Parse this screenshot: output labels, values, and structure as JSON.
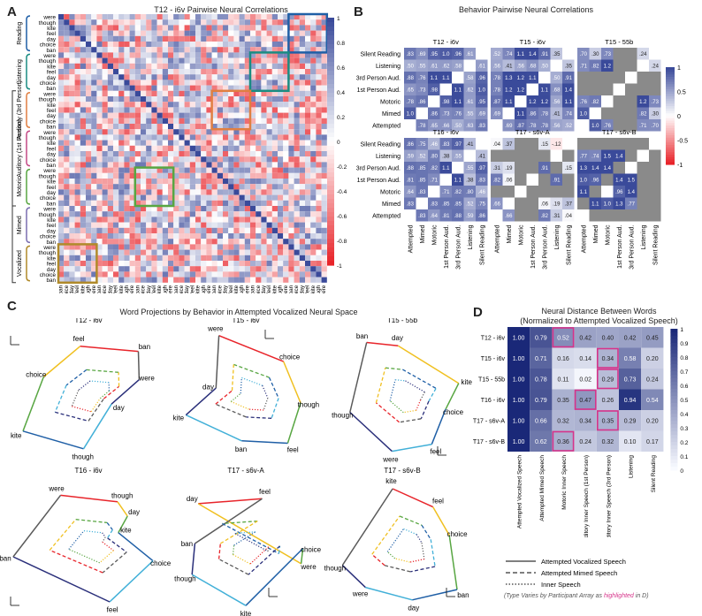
{
  "panels": {
    "a": {
      "label": "A",
      "title": "T12 - i6v Pairwise Neural Correlations"
    },
    "b": {
      "label": "B",
      "title": "Behavior Pairwise Neural Correlations"
    },
    "c": {
      "label": "C",
      "title": "Word Projections by Behavior in Attempted Vocalized Neural Space"
    },
    "d": {
      "label": "D",
      "title_line1": "Neural Distance Between Words",
      "title_line2": "(Normalized to Attempted Vocalized Speech)"
    }
  },
  "words": [
    "were",
    "though",
    "kite",
    "feel",
    "day",
    "choice",
    "ban"
  ],
  "panel_a": {
    "groups": [
      "Reading",
      "Listening",
      "Auditory (3rd Person)",
      "Auditory (1st Person)",
      "Motoric",
      "Mimed",
      "Vocalized"
    ],
    "outer_groups": [
      "Inner Speech (IS)",
      "Attempted Speech (AS)"
    ],
    "axis_label": "(IS)",
    "colorbar_ticks": [
      "1",
      "0.8",
      "0.6",
      "0.4",
      "0.2",
      "0",
      "-0.2",
      "-0.4",
      "-0.6",
      "-0.8",
      "-1"
    ]
  },
  "panel_b": {
    "row_labels": [
      "Silent Reading",
      "Listening",
      "3rd Person Aud.",
      "1st Person Aud.",
      "Motoric",
      "Mimed",
      "Attempted"
    ],
    "col_labels": [
      "Attempted",
      "Mimed",
      "Motoric",
      "1st Person Aud.",
      "3rd Person Aud.",
      "Listening",
      "Silent Reading"
    ],
    "bracket_as": "(AS)",
    "bracket_is": "(IS)",
    "colorbar_ticks": [
      "1",
      "0.5",
      "0",
      "-0.5",
      "-1"
    ],
    "matrices": [
      {
        "name": "T12 - i6v",
        "cells": [
          [
            ".83",
            ".69",
            ".95",
            "1.0",
            ".96",
            ".61",
            ""
          ],
          [
            ".50",
            ".55",
            ".61",
            ".62",
            ".58",
            "",
            ".61"
          ],
          [
            ".88",
            ".76",
            "1.1",
            "1.1",
            "",
            ".58",
            ".96"
          ],
          [
            ".65",
            ".73",
            ".98",
            "",
            "1.1",
            ".62",
            "1.0"
          ],
          [
            ".78",
            ".86",
            "",
            ".98",
            "1.1",
            ".61",
            ".95"
          ],
          [
            "1.0",
            "",
            ".86",
            ".73",
            ".76",
            ".55",
            ".69"
          ],
          [
            "",
            ".78",
            ".65",
            ".66",
            ".50",
            ".63",
            ".83"
          ]
        ]
      },
      {
        "name": "T15 - i6v",
        "cells": [
          [
            ".52",
            ".74",
            "1.1",
            "1.4",
            ".91",
            ".35",
            ""
          ],
          [
            ".56",
            ".41",
            ".56",
            ".68",
            ".50",
            "",
            ".35"
          ],
          [
            ".78",
            "1.3",
            "1.2",
            "1.1",
            "",
            ".50",
            ".91"
          ],
          [
            ".78",
            "1.2",
            "1.2",
            "",
            "1.1",
            ".68",
            "1.4"
          ],
          [
            ".87",
            "1.1",
            "",
            "1.2",
            "1.2",
            ".56",
            "1.1"
          ],
          [
            ".69",
            "",
            "1.1",
            ".86",
            ".78",
            ".41",
            ".74"
          ],
          [
            "",
            ".69",
            ".87",
            ".78",
            ".78",
            ".56",
            ".52"
          ]
        ]
      },
      {
        "name": "T15 - 55b",
        "cells": [
          [
            ".70",
            ".30",
            ".73",
            "",
            "",
            ".24",
            ""
          ],
          [
            ".71",
            ".82",
            "1.2",
            "",
            "",
            "",
            ".24"
          ],
          [
            "",
            "",
            "",
            "",
            "",
            "",
            ""
          ],
          [
            "",
            "",
            "",
            "",
            "",
            "",
            ""
          ],
          [
            ".76",
            ".82",
            "",
            "",
            "",
            "1.2",
            ".73"
          ],
          [
            "1.0",
            "",
            "",
            "",
            "",
            ".82",
            ".30"
          ],
          [
            "",
            "1.0",
            ".76",
            "",
            "",
            ".71",
            ".70"
          ]
        ]
      },
      {
        "name": "T16 - i6v",
        "cells": [
          [
            ".86",
            ".75",
            ".46",
            ".83",
            ".97",
            ".41",
            ""
          ],
          [
            ".59",
            ".52",
            ".80",
            ".38",
            ".55",
            "",
            ".41"
          ],
          [
            ".88",
            ".85",
            ".82",
            "1.1",
            "",
            ".55",
            ".97"
          ],
          [
            ".81",
            ".85",
            ".71",
            "",
            "1.1",
            ".38",
            ".83"
          ],
          [
            ".64",
            ".83",
            "",
            ".71",
            ".82",
            ".80",
            ".46"
          ],
          [
            ".83",
            "",
            ".83",
            ".85",
            ".85",
            ".52",
            ".75"
          ],
          [
            "",
            ".83",
            ".64",
            ".81",
            ".88",
            ".59",
            ".86"
          ]
        ]
      },
      {
        "name": "T17 - s6v-A",
        "cells": [
          [
            ".04",
            ".37",
            "",
            "",
            ".15",
            "-.12",
            ""
          ],
          [
            "",
            "",
            "",
            "",
            "",
            "",
            ""
          ],
          [
            ".31",
            ".19",
            "",
            "",
            ".91",
            "",
            ".15"
          ],
          [
            ".82",
            ".06",
            "",
            "",
            "",
            ".91",
            ""
          ],
          [
            "",
            "",
            "",
            "",
            "",
            "",
            ""
          ],
          [
            ".66",
            "",
            "",
            "",
            ".06",
            ".19",
            ".37"
          ],
          [
            "",
            ".66",
            "",
            "",
            ".82",
            ".31",
            ".04"
          ]
        ]
      },
      {
        "name": "T17 - s6v-B",
        "cells": [
          [
            "",
            "",
            "",
            "",
            "",
            "",
            ""
          ],
          [
            ".77",
            ".74",
            "1.5",
            "1.4",
            "",
            "",
            ""
          ],
          [
            "1.3",
            "1.4",
            "1.4",
            "",
            "",
            "",
            ""
          ],
          [
            "1.0",
            ".96",
            "",
            "1.4",
            "1.5",
            "",
            ""
          ],
          [
            "1.1",
            "",
            "",
            ".96",
            "1.4",
            "",
            ""
          ],
          [
            "",
            "1.1",
            "1.0",
            "1.3",
            ".77",
            "",
            ""
          ],
          [
            "",
            "",
            "",
            "",
            "",
            "",
            ""
          ]
        ]
      }
    ]
  },
  "panel_c": {
    "pc_labels": [
      "PC 1",
      "PC 2",
      "PC 3"
    ],
    "plots": [
      {
        "name": "T12 - i6v",
        "labels": [
          {
            "t": "ban"
          },
          {
            "t": "feel"
          },
          {
            "t": "choice"
          },
          {
            "t": "kite"
          },
          {
            "t": "though"
          },
          {
            "t": "day"
          },
          {
            "t": "were"
          }
        ]
      },
      {
        "name": "T15 - i6v",
        "labels": [
          {
            "t": "were"
          },
          {
            "t": "choice"
          },
          {
            "t": "though"
          },
          {
            "t": "feel"
          },
          {
            "t": "ban"
          },
          {
            "t": "kite"
          },
          {
            "t": "day"
          }
        ]
      },
      {
        "name": "T15 - 55b",
        "labels": [
          {
            "t": "ban"
          },
          {
            "t": "day"
          },
          {
            "t": "kite"
          },
          {
            "t": "choice"
          },
          {
            "t": "feel"
          },
          {
            "t": "were"
          },
          {
            "t": "though"
          }
        ]
      },
      {
        "name": "T16 - i6v",
        "labels": [
          {
            "t": "were"
          },
          {
            "t": "though"
          },
          {
            "t": "day"
          },
          {
            "t": "kite"
          },
          {
            "t": "choice"
          },
          {
            "t": "feel"
          },
          {
            "t": "ban"
          }
        ]
      },
      {
        "name": "T17 - s6v-A",
        "labels": [
          {
            "t": "feel"
          },
          {
            "t": "day"
          },
          {
            "t": "were"
          },
          {
            "t": "choice"
          },
          {
            "t": "kite"
          },
          {
            "t": "though"
          },
          {
            "t": "ban"
          }
        ]
      },
      {
        "name": "T17 - s6v-B",
        "labels": [
          {
            "t": "kite"
          },
          {
            "t": "feel"
          },
          {
            "t": "choice"
          },
          {
            "t": "ban"
          },
          {
            "t": "day"
          },
          {
            "t": "were"
          },
          {
            "t": "though"
          }
        ]
      }
    ],
    "legend": {
      "vocalized": "Attempted Vocalized Speech",
      "mimed": "Attempted Mimed Speech",
      "inner": "Inner Speech",
      "note_prefix": "(Type Varies by Participant Array as ",
      "note_highlight": "highlighted",
      "note_suffix": " in D)"
    }
  },
  "chart_data": {
    "type": "heatmap",
    "title": "Neural Distance Between Words (Normalized to Attempted Vocalized Speech)",
    "rows": [
      "T12 - i6v",
      "T15 - i6v",
      "T15 - 55b",
      "T16 - i6v",
      "T17 - s6v-A",
      "T17 - s6v-B"
    ],
    "columns": [
      "Attempted Vocalized Speech",
      "Attempted Mimed Speech",
      "Motoric Inner Speech",
      "Auditory Inner Speech (1st Person)",
      "Auditory Inner Speech (3rd Person)",
      "Listening",
      "Silent Reading"
    ],
    "values": [
      [
        "1.00",
        "0.79",
        "0.52",
        "0.42",
        "0.40",
        "0.42",
        "0.45"
      ],
      [
        "1.00",
        "0.71",
        "0.16",
        "0.14",
        "0.34",
        "0.58",
        "0.20"
      ],
      [
        "1.00",
        "0.78",
        "0.11",
        "0.02",
        "0.29",
        "0.73",
        "0.24"
      ],
      [
        "1.00",
        "0.79",
        "0.35",
        "0.47",
        "0.26",
        "0.94",
        "0.54"
      ],
      [
        "1.00",
        "0.66",
        "0.32",
        "0.34",
        "0.35",
        "0.29",
        "0.20"
      ],
      [
        "1.00",
        "0.62",
        "0.36",
        "0.24",
        "0.32",
        "0.10",
        "0.17"
      ]
    ],
    "highlighted": [
      [
        0,
        2
      ],
      [
        1,
        4
      ],
      [
        2,
        4
      ],
      [
        3,
        3
      ],
      [
        4,
        4
      ],
      [
        5,
        2
      ]
    ],
    "colorbar_ticks": [
      "1",
      "0.9",
      "0.8",
      "0.7",
      "0.6",
      "0.5",
      "0.4",
      "0.3",
      "0.2",
      "0.1",
      "0"
    ],
    "range": [
      0,
      1
    ]
  },
  "colors": {
    "high": "#3a4a9a",
    "low": "#e8242a",
    "highlight": "#d6338a",
    "gray": "#8a8a8a"
  }
}
